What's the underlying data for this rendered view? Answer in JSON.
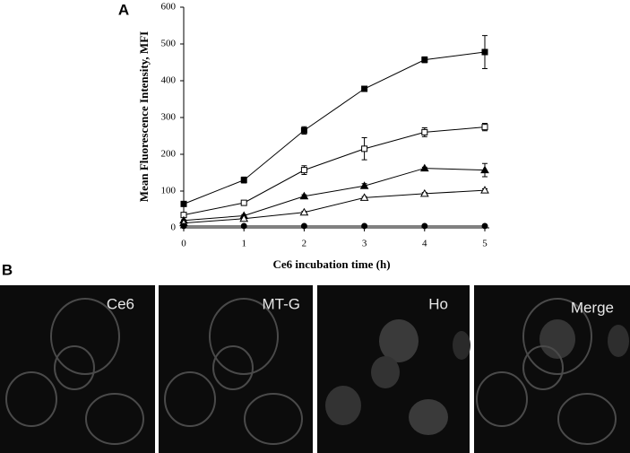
{
  "chart_data": {
    "type": "line",
    "x_label": "Ce6 incubation time (h)",
    "y_label": "Mean Fluorescence Intensity, MFI",
    "x": [
      0,
      1,
      2,
      3,
      4,
      5
    ],
    "xlim": [
      0,
      5
    ],
    "xticks": [
      0,
      1,
      2,
      3,
      4,
      5
    ],
    "ylim": [
      0,
      600
    ],
    "yticks": [
      0,
      100,
      200,
      300,
      400,
      500,
      600
    ],
    "series": [
      {
        "marker": "square-filled",
        "color": "#000000",
        "values": [
          65,
          130,
          265,
          378,
          457,
          478
        ],
        "errors": [
          3,
          8,
          10,
          6,
          8,
          45
        ]
      },
      {
        "marker": "square-open",
        "color": "#000000",
        "values": [
          35,
          68,
          157,
          215,
          260,
          274
        ],
        "errors": [
          3,
          4,
          12,
          30,
          12,
          10
        ]
      },
      {
        "marker": "triangle-filled",
        "color": "#000000",
        "values": [
          20,
          33,
          86,
          114,
          162,
          157
        ],
        "errors": [
          2,
          3,
          4,
          6,
          3,
          18
        ]
      },
      {
        "marker": "triangle-open",
        "color": "#000000",
        "values": [
          13,
          25,
          42,
          82,
          93,
          102
        ],
        "errors": [
          2,
          2,
          3,
          3,
          3,
          4
        ]
      },
      {
        "marker": "circle-filled",
        "color": "#000000",
        "values": [
          5,
          5,
          5,
          5,
          5,
          5
        ]
      }
    ]
  },
  "panel_labels": [
    "A",
    "B"
  ],
  "images": [
    {
      "label": "Ce6"
    },
    {
      "label": "MT-G"
    },
    {
      "label": "Ho"
    },
    {
      "label": "Merge"
    }
  ]
}
